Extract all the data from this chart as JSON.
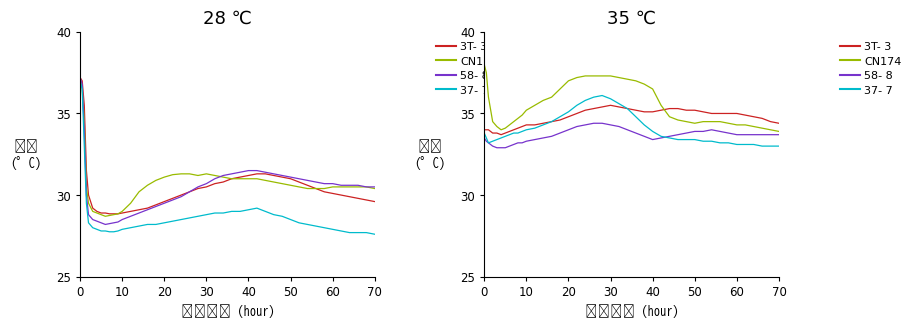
{
  "title_left": "28’C",
  "title_right": "35’C",
  "title_left_str": "28°C",
  "title_right_str": "35°C",
  "xlabel": "발효시간 (hour)",
  "ylabel_line1": "품온",
  "ylabel_line2": "(°C)",
  "ylim": [
    25,
    40
  ],
  "xlim": [
    0,
    70
  ],
  "yticks": [
    25,
    30,
    35,
    40
  ],
  "xticks": [
    0,
    10,
    20,
    30,
    40,
    50,
    60,
    70
  ],
  "legend_labels": [
    "3T- 3",
    "CN174",
    "58- 8",
    "37- 7"
  ],
  "colors": [
    "#cc2222",
    "#99bb00",
    "#7733cc",
    "#00bbcc"
  ],
  "left": {
    "3T-3": {
      "x": [
        0,
        0.5,
        1,
        1.5,
        2,
        3,
        4,
        5,
        6,
        7,
        8,
        9,
        10,
        12,
        14,
        16,
        18,
        20,
        22,
        24,
        26,
        28,
        30,
        32,
        34,
        36,
        38,
        40,
        42,
        44,
        46,
        48,
        50,
        52,
        54,
        56,
        58,
        60,
        62,
        64,
        66,
        68,
        70
      ],
      "y": [
        37.2,
        37.0,
        35.5,
        31.5,
        30.0,
        29.2,
        29.0,
        28.9,
        28.9,
        28.85,
        28.85,
        28.85,
        28.9,
        29.0,
        29.1,
        29.2,
        29.4,
        29.6,
        29.8,
        30.0,
        30.2,
        30.4,
        30.5,
        30.7,
        30.8,
        31.0,
        31.1,
        31.2,
        31.3,
        31.3,
        31.2,
        31.1,
        31.0,
        30.8,
        30.6,
        30.4,
        30.2,
        30.1,
        30.0,
        29.9,
        29.8,
        29.7,
        29.6
      ]
    },
    "CN174": {
      "x": [
        0,
        0.5,
        1,
        1.5,
        2,
        3,
        4,
        5,
        6,
        7,
        8,
        9,
        10,
        12,
        14,
        16,
        18,
        20,
        22,
        24,
        26,
        28,
        30,
        32,
        34,
        36,
        38,
        40,
        42,
        44,
        46,
        48,
        50,
        52,
        54,
        56,
        58,
        60,
        62,
        64,
        66,
        68,
        70
      ],
      "y": [
        37.2,
        36.5,
        34.5,
        30.5,
        29.5,
        29.0,
        28.9,
        28.8,
        28.7,
        28.75,
        28.8,
        28.85,
        29.0,
        29.5,
        30.2,
        30.6,
        30.9,
        31.1,
        31.25,
        31.3,
        31.3,
        31.2,
        31.3,
        31.2,
        31.1,
        31.0,
        31.0,
        31.0,
        31.0,
        30.9,
        30.8,
        30.7,
        30.6,
        30.5,
        30.4,
        30.4,
        30.4,
        30.5,
        30.5,
        30.5,
        30.5,
        30.5,
        30.4
      ]
    },
    "58-8": {
      "x": [
        0,
        0.5,
        1,
        1.5,
        2,
        3,
        4,
        5,
        6,
        7,
        8,
        9,
        10,
        12,
        14,
        16,
        18,
        20,
        22,
        24,
        26,
        28,
        30,
        32,
        34,
        36,
        38,
        40,
        42,
        44,
        46,
        48,
        50,
        52,
        54,
        56,
        58,
        60,
        62,
        64,
        66,
        68,
        70
      ],
      "y": [
        37.2,
        36.8,
        34.0,
        30.0,
        28.8,
        28.5,
        28.4,
        28.3,
        28.2,
        28.25,
        28.3,
        28.35,
        28.5,
        28.7,
        28.9,
        29.1,
        29.3,
        29.5,
        29.7,
        29.9,
        30.2,
        30.5,
        30.7,
        31.0,
        31.2,
        31.3,
        31.4,
        31.5,
        31.5,
        31.4,
        31.3,
        31.2,
        31.1,
        31.0,
        30.9,
        30.8,
        30.7,
        30.7,
        30.6,
        30.6,
        30.6,
        30.5,
        30.5
      ]
    },
    "37-7": {
      "x": [
        0,
        0.5,
        1,
        1.5,
        2,
        3,
        4,
        5,
        6,
        7,
        8,
        9,
        10,
        12,
        14,
        16,
        18,
        20,
        22,
        24,
        26,
        28,
        30,
        32,
        34,
        36,
        38,
        40,
        42,
        44,
        46,
        48,
        50,
        52,
        54,
        56,
        58,
        60,
        62,
        64,
        66,
        68,
        70
      ],
      "y": [
        37.0,
        36.5,
        33.0,
        29.5,
        28.3,
        28.0,
        27.9,
        27.8,
        27.8,
        27.75,
        27.75,
        27.8,
        27.9,
        28.0,
        28.1,
        28.2,
        28.2,
        28.3,
        28.4,
        28.5,
        28.6,
        28.7,
        28.8,
        28.9,
        28.9,
        29.0,
        29.0,
        29.1,
        29.2,
        29.0,
        28.8,
        28.7,
        28.5,
        28.3,
        28.2,
        28.1,
        28.0,
        27.9,
        27.8,
        27.7,
        27.7,
        27.7,
        27.6
      ]
    }
  },
  "right": {
    "3T-3": {
      "x": [
        0,
        0.5,
        1,
        2,
        3,
        4,
        5,
        6,
        7,
        8,
        9,
        10,
        12,
        14,
        16,
        18,
        20,
        22,
        24,
        26,
        28,
        30,
        32,
        34,
        36,
        38,
        40,
        42,
        44,
        46,
        48,
        50,
        52,
        54,
        56,
        58,
        60,
        62,
        64,
        66,
        68,
        70
      ],
      "y": [
        34.0,
        34.0,
        34.0,
        33.8,
        33.8,
        33.7,
        33.8,
        33.9,
        34.0,
        34.1,
        34.2,
        34.3,
        34.3,
        34.4,
        34.5,
        34.6,
        34.8,
        35.0,
        35.2,
        35.3,
        35.4,
        35.5,
        35.4,
        35.3,
        35.2,
        35.1,
        35.1,
        35.2,
        35.3,
        35.3,
        35.2,
        35.2,
        35.1,
        35.0,
        35.0,
        35.0,
        35.0,
        34.9,
        34.8,
        34.7,
        34.5,
        34.4
      ]
    },
    "CN174": {
      "x": [
        0,
        0.5,
        1,
        2,
        3,
        4,
        5,
        6,
        7,
        8,
        9,
        10,
        12,
        14,
        16,
        18,
        20,
        22,
        24,
        26,
        28,
        30,
        32,
        34,
        36,
        38,
        40,
        42,
        44,
        46,
        48,
        50,
        52,
        54,
        56,
        58,
        60,
        62,
        64,
        66,
        68,
        70
      ],
      "y": [
        38.0,
        37.5,
        36.0,
        34.5,
        34.2,
        34.0,
        34.1,
        34.3,
        34.5,
        34.7,
        34.9,
        35.2,
        35.5,
        35.8,
        36.0,
        36.5,
        37.0,
        37.2,
        37.3,
        37.3,
        37.3,
        37.3,
        37.2,
        37.1,
        37.0,
        36.8,
        36.5,
        35.5,
        34.8,
        34.6,
        34.5,
        34.4,
        34.5,
        34.5,
        34.5,
        34.4,
        34.3,
        34.3,
        34.2,
        34.1,
        34.0,
        33.9
      ]
    },
    "58-8": {
      "x": [
        0,
        0.5,
        1,
        2,
        3,
        4,
        5,
        6,
        7,
        8,
        9,
        10,
        12,
        14,
        16,
        18,
        20,
        22,
        24,
        26,
        28,
        30,
        32,
        34,
        36,
        38,
        40,
        42,
        44,
        46,
        48,
        50,
        52,
        54,
        56,
        58,
        60,
        62,
        64,
        66,
        68,
        70
      ],
      "y": [
        33.5,
        33.3,
        33.2,
        33.0,
        32.9,
        32.9,
        32.9,
        33.0,
        33.1,
        33.2,
        33.2,
        33.3,
        33.4,
        33.5,
        33.6,
        33.8,
        34.0,
        34.2,
        34.3,
        34.4,
        34.4,
        34.3,
        34.2,
        34.0,
        33.8,
        33.6,
        33.4,
        33.5,
        33.6,
        33.7,
        33.8,
        33.9,
        33.9,
        34.0,
        33.9,
        33.8,
        33.7,
        33.7,
        33.7,
        33.7,
        33.7,
        33.7
      ]
    },
    "37-7": {
      "x": [
        0,
        0.5,
        1,
        2,
        3,
        4,
        5,
        6,
        7,
        8,
        9,
        10,
        12,
        14,
        16,
        18,
        20,
        22,
        24,
        26,
        28,
        30,
        32,
        34,
        36,
        38,
        40,
        42,
        44,
        46,
        48,
        50,
        52,
        54,
        56,
        58,
        60,
        62,
        64,
        66,
        68,
        70
      ],
      "y": [
        33.8,
        33.5,
        33.2,
        33.3,
        33.4,
        33.5,
        33.6,
        33.7,
        33.8,
        33.8,
        33.9,
        34.0,
        34.1,
        34.3,
        34.5,
        34.8,
        35.1,
        35.5,
        35.8,
        36.0,
        36.1,
        35.9,
        35.6,
        35.3,
        34.8,
        34.3,
        33.9,
        33.6,
        33.5,
        33.4,
        33.4,
        33.4,
        33.3,
        33.3,
        33.2,
        33.2,
        33.1,
        33.1,
        33.1,
        33.0,
        33.0,
        33.0
      ]
    }
  }
}
